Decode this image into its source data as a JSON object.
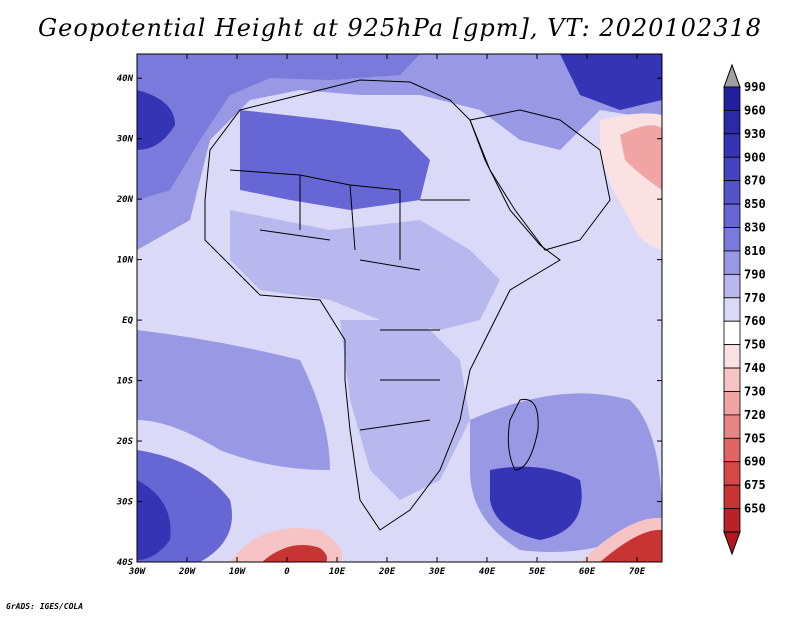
{
  "title": "Geopotential Height at 925hPa [gpm], VT: 2020102318",
  "credit": "GrADS: IGES/COLA",
  "map": {
    "lon_range": [
      -30,
      75
    ],
    "lat_range": [
      -40,
      44
    ],
    "lon_ticks": [
      {
        "value": -30,
        "label": "30W"
      },
      {
        "value": -20,
        "label": "20W"
      },
      {
        "value": -10,
        "label": "10W"
      },
      {
        "value": 0,
        "label": "0"
      },
      {
        "value": 10,
        "label": "10E"
      },
      {
        "value": 20,
        "label": "20E"
      },
      {
        "value": 30,
        "label": "30E"
      },
      {
        "value": 40,
        "label": "40E"
      },
      {
        "value": 50,
        "label": "50E"
      },
      {
        "value": 60,
        "label": "60E"
      },
      {
        "value": 70,
        "label": "70E"
      }
    ],
    "lat_ticks": [
      {
        "value": 40,
        "label": "40N"
      },
      {
        "value": 30,
        "label": "30N"
      },
      {
        "value": 20,
        "label": "20N"
      },
      {
        "value": 10,
        "label": "10N"
      },
      {
        "value": 0,
        "label": "EQ"
      },
      {
        "value": -10,
        "label": "10S"
      },
      {
        "value": -20,
        "label": "20S"
      },
      {
        "value": -30,
        "label": "30S"
      },
      {
        "value": -40,
        "label": "40S"
      }
    ]
  },
  "colorbar": {
    "top_arrow_color": "#a0a0a0",
    "bottom_arrow_color": "#b0171f",
    "levels": [
      {
        "label": "990",
        "color": "#20209e"
      },
      {
        "label": "960",
        "color": "#2a2aa8"
      },
      {
        "label": "930",
        "color": "#3434b4"
      },
      {
        "label": "900",
        "color": "#4444c0"
      },
      {
        "label": "870",
        "color": "#5454ca"
      },
      {
        "label": "850",
        "color": "#6666d4"
      },
      {
        "label": "830",
        "color": "#7a7adc"
      },
      {
        "label": "810",
        "color": "#9898e4"
      },
      {
        "label": "790",
        "color": "#b8b8ee"
      },
      {
        "label": "770",
        "color": "#dadaf8"
      },
      {
        "label": "760",
        "color": "#ffffff"
      },
      {
        "label": "750",
        "color": "#fbe2e2"
      },
      {
        "label": "740",
        "color": "#f6c4c4"
      },
      {
        "label": "730",
        "color": "#f0a4a4"
      },
      {
        "label": "720",
        "color": "#e88484"
      },
      {
        "label": "705",
        "color": "#e06464"
      },
      {
        "label": "690",
        "color": "#d64848"
      },
      {
        "label": "675",
        "color": "#c83434"
      },
      {
        "label": "650",
        "color": "#b8232a"
      }
    ]
  },
  "colors": {
    "background_field": "#dadaf8",
    "land_field": "#b8b8ee",
    "mid_field": "#9898e4",
    "deep_field": "#6666d4",
    "darkest_field": "#3434b4",
    "low_field": "#f6c4c4",
    "lowest_field": "#c83434"
  }
}
